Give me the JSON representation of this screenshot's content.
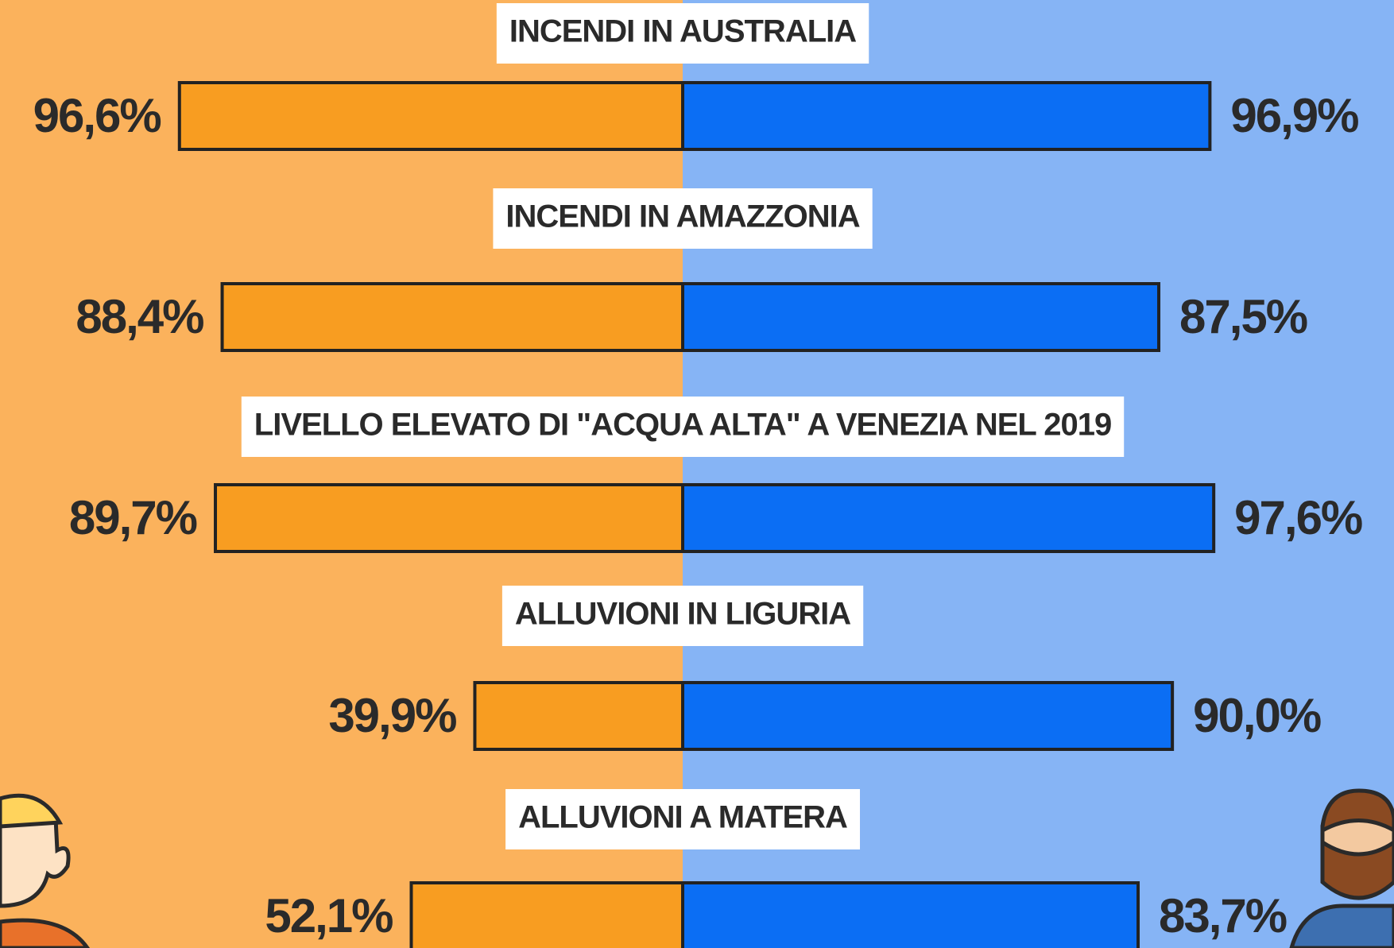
{
  "chart_data": {
    "type": "butterfly",
    "categories": [
      "INCENDI IN AUSTRALIA",
      "INCENDI IN AMAZZONIA",
      "LIVELLO ELEVATO DI \"ACQUA ALTA\" A VENEZIA NEL 2019",
      "ALLUVIONI IN LIGURIA",
      "ALLUVIONI A MATERA"
    ],
    "series": [
      {
        "color": "#f89d21",
        "background": "#fbb25c",
        "values": [
          96.6,
          88.4,
          89.7,
          39.9,
          52.1
        ],
        "value_labels": [
          "96,6%",
          "88,4%",
          "89,7%",
          "39,9%",
          "52,1%"
        ]
      },
      {
        "color": "#0b6ef4",
        "background": "#86b4f5",
        "values": [
          96.9,
          87.5,
          97.6,
          90.0,
          83.7
        ],
        "value_labels": [
          "96,9%",
          "87,5%",
          "97,6%",
          "90,0%",
          "83,7%"
        ]
      }
    ]
  }
}
